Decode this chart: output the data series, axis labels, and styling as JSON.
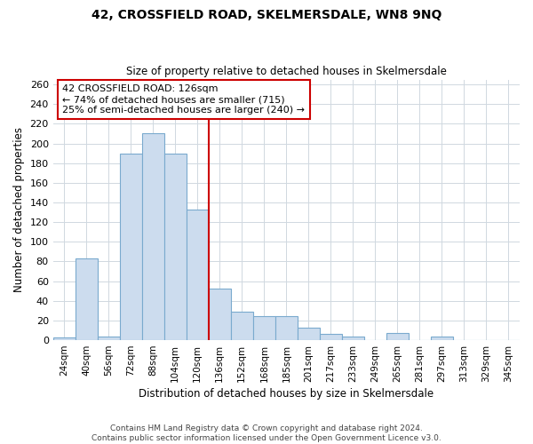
{
  "title": "42, CROSSFIELD ROAD, SKELMERSDALE, WN8 9NQ",
  "subtitle": "Size of property relative to detached houses in Skelmersdale",
  "xlabel": "Distribution of detached houses by size in Skelmersdale",
  "ylabel": "Number of detached properties",
  "bar_labels": [
    "24sqm",
    "40sqm",
    "56sqm",
    "72sqm",
    "88sqm",
    "104sqm",
    "120sqm",
    "136sqm",
    "152sqm",
    "168sqm",
    "185sqm",
    "201sqm",
    "217sqm",
    "233sqm",
    "249sqm",
    "265sqm",
    "281sqm",
    "297sqm",
    "313sqm",
    "329sqm",
    "345sqm"
  ],
  "bar_values": [
    3,
    83,
    4,
    190,
    210,
    190,
    133,
    52,
    29,
    24,
    24,
    13,
    6,
    4,
    0,
    7,
    0,
    4,
    0,
    0,
    0
  ],
  "bar_color": "#ccdcee",
  "bar_edge_color": "#7aaace",
  "grid_color": "#d0d8e0",
  "vline_color": "#cc0000",
  "annotation_text": "42 CROSSFIELD ROAD: 126sqm\n← 74% of detached houses are smaller (715)\n25% of semi-detached houses are larger (240) →",
  "annotation_box_edge": "#cc0000",
  "ylim": [
    0,
    265
  ],
  "yticks": [
    0,
    20,
    40,
    60,
    80,
    100,
    120,
    140,
    160,
    180,
    200,
    220,
    240,
    260
  ],
  "footer_line1": "Contains HM Land Registry data © Crown copyright and database right 2024.",
  "footer_line2": "Contains public sector information licensed under the Open Government Licence v3.0."
}
